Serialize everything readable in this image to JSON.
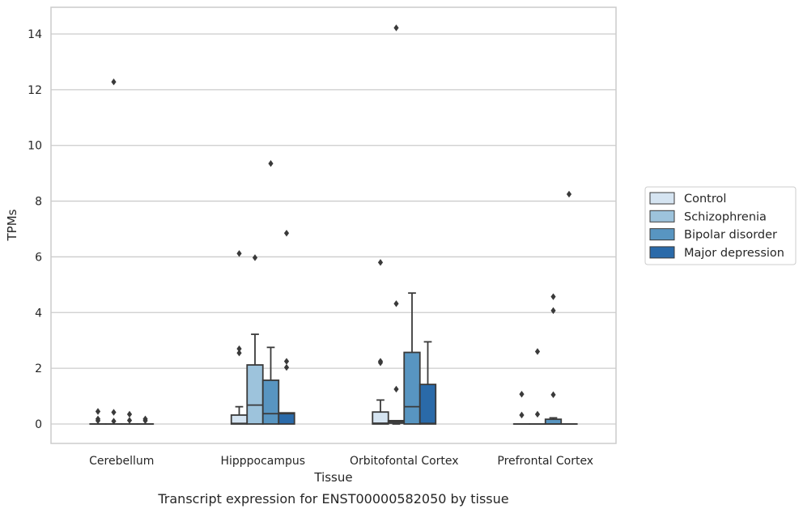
{
  "chart_data": {
    "type": "box",
    "title": "Transcript expression for ENST00000582050 by tissue",
    "xlabel": "Tissue",
    "ylabel": "TPMs",
    "ylim": [
      -0.7,
      15.0
    ],
    "yticks": [
      0,
      2,
      4,
      6,
      8,
      10,
      12,
      14
    ],
    "grid": true,
    "legend_position": "right",
    "categories": [
      "Cerebellum",
      "Hipppocampus",
      "Orbitofontal Cortex",
      "Prefrontal Cortex"
    ],
    "series": [
      {
        "name": "Control",
        "color": "#d5e4f1",
        "boxes": [
          {
            "whislo": 0,
            "q1": 0,
            "med": 0,
            "q3": 0,
            "whishi": 0,
            "fliers": [
              0.45,
              0.18,
              0.12
            ]
          },
          {
            "whislo": 0,
            "q1": 0,
            "med": 0.02,
            "q3": 0.32,
            "whishi": 0.62,
            "fliers": [
              2.7,
              2.55,
              6.12
            ]
          },
          {
            "whislo": 0,
            "q1": 0,
            "med": 0.03,
            "q3": 0.43,
            "whishi": 0.86,
            "fliers": [
              2.2,
              2.25,
              5.8
            ]
          },
          {
            "whislo": 0,
            "q1": 0,
            "med": 0,
            "q3": 0,
            "whishi": 0,
            "fliers": [
              1.07,
              0.32
            ]
          }
        ]
      },
      {
        "name": "Schizophrenia",
        "color": "#9dc3dc",
        "boxes": [
          {
            "whislo": 0,
            "q1": 0,
            "med": 0,
            "q3": 0,
            "whishi": 0,
            "fliers": [
              12.28,
              0.42,
              0.1
            ]
          },
          {
            "whislo": 0,
            "q1": 0,
            "med": 0.68,
            "q3": 2.12,
            "whishi": 3.22,
            "fliers": [
              5.97
            ]
          },
          {
            "whislo": 0,
            "q1": 0.03,
            "med": 0.08,
            "q3": 0.12,
            "whishi": 0.12,
            "fliers": [
              14.22,
              4.32,
              1.25
            ]
          },
          {
            "whislo": 0,
            "q1": 0,
            "med": 0,
            "q3": 0,
            "whishi": 0,
            "fliers": [
              0.35,
              2.6
            ]
          }
        ]
      },
      {
        "name": "Bipolar disorder",
        "color": "#5895c1",
        "boxes": [
          {
            "whislo": 0,
            "q1": 0,
            "med": 0,
            "q3": 0,
            "whishi": 0,
            "fliers": [
              0.35,
              0.13
            ]
          },
          {
            "whislo": 0,
            "q1": 0,
            "med": 0.37,
            "q3": 1.57,
            "whishi": 2.75,
            "fliers": [
              9.35
            ]
          },
          {
            "whislo": 0,
            "q1": 0,
            "med": 0.62,
            "q3": 2.57,
            "whishi": 4.7,
            "fliers": []
          },
          {
            "whislo": 0,
            "q1": 0,
            "med": 0,
            "q3": 0.17,
            "whishi": 0.22,
            "fliers": [
              4.57,
              4.07,
              1.05
            ]
          }
        ]
      },
      {
        "name": "Major depression",
        "color": "#2a6aa9",
        "boxes": [
          {
            "whislo": 0,
            "q1": 0,
            "med": 0,
            "q3": 0,
            "whishi": 0,
            "fliers": [
              0.18,
              0.12
            ]
          },
          {
            "whislo": 0,
            "q1": 0,
            "med": 0.37,
            "q3": 0.4,
            "whishi": 0.4,
            "fliers": [
              6.85,
              2.25,
              2.03
            ]
          },
          {
            "whislo": 0,
            "q1": 0,
            "med": 0.02,
            "q3": 1.42,
            "whishi": 2.95,
            "fliers": []
          },
          {
            "whislo": 0,
            "q1": 0,
            "med": 0,
            "q3": 0,
            "whishi": 0,
            "fliers": [
              8.25
            ]
          }
        ]
      }
    ]
  }
}
